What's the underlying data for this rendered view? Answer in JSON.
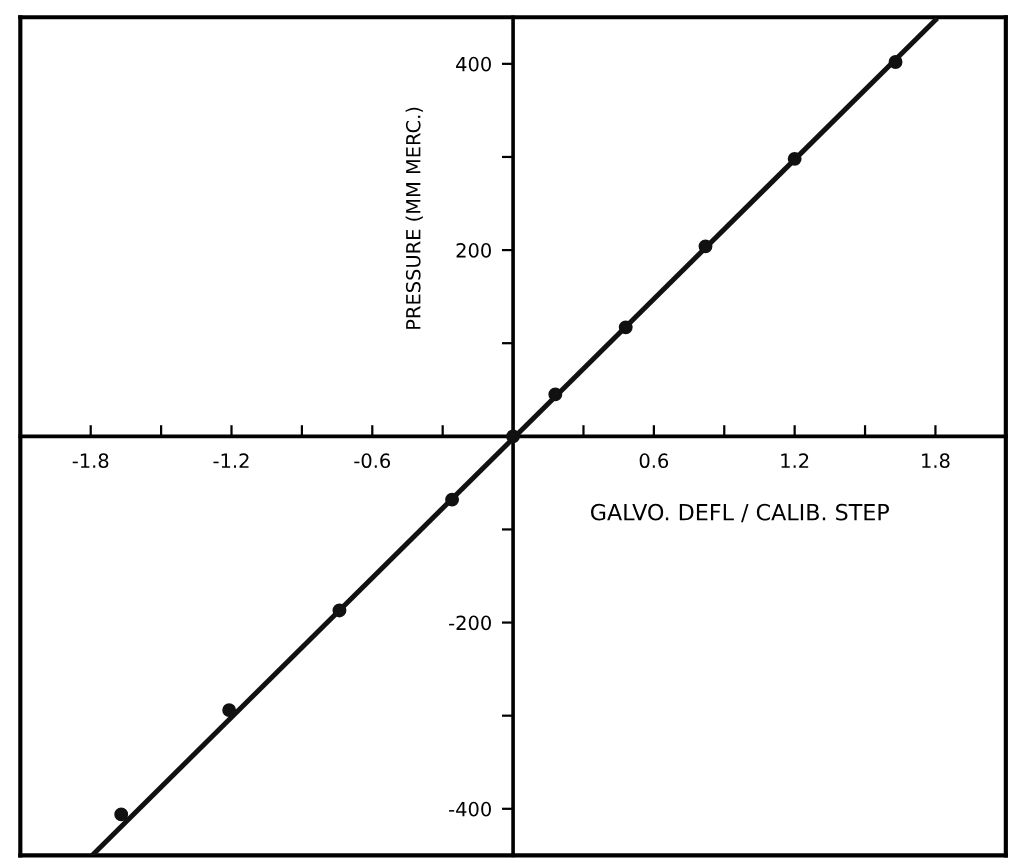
{
  "chart_data": {
    "type": "line",
    "xlabel": "GALVO. DEFL / CALIB. STEP",
    "ylabel": "PRESSURE (MM MERC.)",
    "xlim": [
      -2.1,
      2.1
    ],
    "ylim": [
      -450,
      450
    ],
    "xticks": [
      {
        "value": -1.8,
        "label": "-1.8"
      },
      {
        "value": -1.5,
        "label": null
      },
      {
        "value": -1.2,
        "label": "-1.2"
      },
      {
        "value": -0.9,
        "label": null
      },
      {
        "value": -0.6,
        "label": "-0.6"
      },
      {
        "value": -0.3,
        "label": null
      },
      {
        "value": 0.3,
        "label": null
      },
      {
        "value": 0.6,
        "label": "0.6"
      },
      {
        "value": 0.9,
        "label": null
      },
      {
        "value": 1.2,
        "label": "1.2"
      },
      {
        "value": 1.5,
        "label": null
      },
      {
        "value": 1.8,
        "label": "1.8"
      }
    ],
    "yticks": [
      {
        "value": -400,
        "label": "-400"
      },
      {
        "value": -300,
        "label": null
      },
      {
        "value": -200,
        "label": "-200"
      },
      {
        "value": -100,
        "label": null
      },
      {
        "value": 100,
        "label": null
      },
      {
        "value": 200,
        "label": "200"
      },
      {
        "value": 300,
        "label": null
      },
      {
        "value": 400,
        "label": "400"
      }
    ],
    "grid": false,
    "series": [
      {
        "color": "#111111",
        "marker": "none",
        "x": [
          -1.79,
          1.8
        ],
        "values": [
          -449,
          447
        ]
      },
      {
        "type": "scatter",
        "color": "#111111",
        "marker": "circle",
        "x": [
          -1.67,
          -1.21,
          -0.74,
          -0.26,
          0,
          0.18,
          0.48,
          0.82,
          1.2,
          1.63
        ],
        "values": [
          -406,
          -294,
          -187,
          -68,
          0,
          45,
          117,
          204,
          298,
          402
        ]
      }
    ]
  }
}
